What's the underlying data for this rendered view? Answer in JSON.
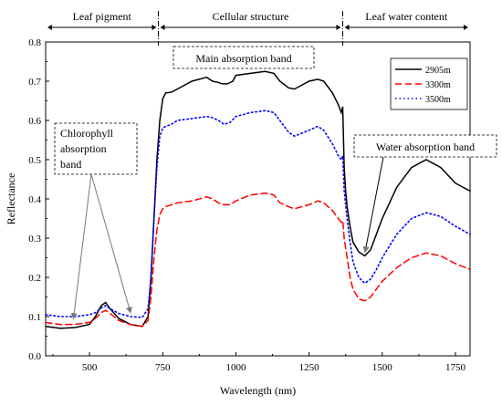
{
  "chart_data": {
    "type": "line",
    "xlabel": "Wavelength (nm)",
    "ylabel": "Reflectance",
    "xlim": [
      350,
      1800
    ],
    "ylim": [
      0.0,
      0.8
    ],
    "xticks": [
      500,
      750,
      1000,
      1250,
      1500,
      1750
    ],
    "yticks": [
      0.0,
      0.1,
      0.2,
      0.3,
      0.4,
      0.5,
      0.6,
      0.7,
      0.8
    ],
    "xtick_labels": [
      "500",
      "750",
      "1000",
      "1250",
      "1500",
      "1750"
    ],
    "ytick_labels": [
      "0.0",
      "0.1",
      "0.2",
      "0.3",
      "0.4",
      "0.5",
      "0.6",
      "0.7",
      "0.8"
    ],
    "grid": false,
    "legend_position": "top-right",
    "regions": [
      {
        "label": "Leaf pigment",
        "x_start": 350,
        "x_end": 735
      },
      {
        "label": "Cellular structure",
        "x_start": 735,
        "x_end": 1365
      },
      {
        "label": "Leaf water content",
        "x_start": 1365,
        "x_end": 1800
      }
    ],
    "annotations": [
      {
        "label_lines": [
          "Chlorophyll",
          "absorption",
          "band"
        ],
        "arrow_targets": [
          [
            445,
            0.095
          ],
          [
            640,
            0.11
          ]
        ]
      },
      {
        "label_lines": [
          "Main absorption band"
        ],
        "arrow_targets": []
      },
      {
        "label_lines": [
          "Water absorption band"
        ],
        "arrow_targets": [
          [
            1435,
            0.255
          ]
        ]
      }
    ],
    "series": [
      {
        "name": "2905m",
        "color": "#000000",
        "style": "solid",
        "x": [
          350,
          400,
          450,
          500,
          520,
          540,
          555,
          570,
          600,
          640,
          680,
          700,
          710,
          720,
          730,
          740,
          750,
          760,
          780,
          800,
          850,
          900,
          920,
          940,
          950,
          970,
          990,
          1000,
          1050,
          1100,
          1130,
          1150,
          1180,
          1200,
          1250,
          1280,
          1300,
          1330,
          1350,
          1360,
          1365,
          1370,
          1375,
          1380,
          1390,
          1400,
          1420,
          1440,
          1460,
          1480,
          1500,
          1550,
          1600,
          1650,
          1700,
          1750,
          1800
        ],
        "values": [
          0.075,
          0.07,
          0.072,
          0.08,
          0.1,
          0.128,
          0.136,
          0.12,
          0.095,
          0.08,
          0.075,
          0.1,
          0.2,
          0.35,
          0.5,
          0.6,
          0.655,
          0.67,
          0.672,
          0.68,
          0.7,
          0.71,
          0.7,
          0.697,
          0.694,
          0.693,
          0.7,
          0.715,
          0.72,
          0.725,
          0.72,
          0.7,
          0.683,
          0.68,
          0.7,
          0.705,
          0.7,
          0.67,
          0.64,
          0.62,
          0.635,
          0.48,
          0.42,
          0.38,
          0.33,
          0.29,
          0.265,
          0.255,
          0.27,
          0.31,
          0.35,
          0.43,
          0.48,
          0.5,
          0.48,
          0.44,
          0.42
        ]
      },
      {
        "name": "3300m",
        "color": "#ff0000",
        "style": "dashed",
        "x": [
          350,
          400,
          450,
          500,
          520,
          540,
          555,
          570,
          600,
          640,
          680,
          700,
          710,
          720,
          730,
          740,
          750,
          760,
          780,
          800,
          850,
          900,
          920,
          940,
          960,
          980,
          1000,
          1050,
          1100,
          1130,
          1150,
          1180,
          1200,
          1250,
          1280,
          1300,
          1330,
          1350,
          1360,
          1365,
          1370,
          1380,
          1390,
          1400,
          1420,
          1440,
          1460,
          1480,
          1500,
          1550,
          1600,
          1650,
          1700,
          1750,
          1800
        ],
        "values": [
          0.085,
          0.08,
          0.08,
          0.085,
          0.095,
          0.11,
          0.116,
          0.108,
          0.09,
          0.08,
          0.075,
          0.09,
          0.15,
          0.25,
          0.32,
          0.36,
          0.375,
          0.38,
          0.385,
          0.39,
          0.395,
          0.405,
          0.4,
          0.39,
          0.385,
          0.385,
          0.395,
          0.41,
          0.415,
          0.41,
          0.39,
          0.38,
          0.375,
          0.385,
          0.395,
          0.39,
          0.37,
          0.35,
          0.34,
          0.345,
          0.3,
          0.25,
          0.2,
          0.17,
          0.145,
          0.14,
          0.15,
          0.17,
          0.19,
          0.225,
          0.25,
          0.262,
          0.255,
          0.235,
          0.22
        ]
      },
      {
        "name": "3500m",
        "color": "#0000ff",
        "style": "dotted",
        "x": [
          350,
          400,
          450,
          500,
          520,
          540,
          555,
          570,
          600,
          640,
          680,
          700,
          710,
          720,
          730,
          740,
          750,
          760,
          780,
          800,
          850,
          900,
          920,
          940,
          960,
          980,
          1000,
          1050,
          1100,
          1130,
          1150,
          1180,
          1200,
          1250,
          1280,
          1300,
          1330,
          1350,
          1360,
          1365,
          1370,
          1380,
          1390,
          1400,
          1420,
          1440,
          1460,
          1480,
          1500,
          1550,
          1600,
          1650,
          1700,
          1750,
          1800
        ],
        "values": [
          0.105,
          0.1,
          0.1,
          0.105,
          0.11,
          0.122,
          0.128,
          0.12,
          0.108,
          0.1,
          0.098,
          0.12,
          0.2,
          0.35,
          0.48,
          0.56,
          0.58,
          0.585,
          0.59,
          0.6,
          0.605,
          0.61,
          0.607,
          0.6,
          0.59,
          0.595,
          0.61,
          0.62,
          0.625,
          0.62,
          0.6,
          0.57,
          0.56,
          0.575,
          0.585,
          0.575,
          0.54,
          0.51,
          0.5,
          0.51,
          0.42,
          0.35,
          0.29,
          0.24,
          0.2,
          0.185,
          0.195,
          0.22,
          0.25,
          0.31,
          0.35,
          0.365,
          0.355,
          0.33,
          0.31
        ]
      }
    ]
  }
}
